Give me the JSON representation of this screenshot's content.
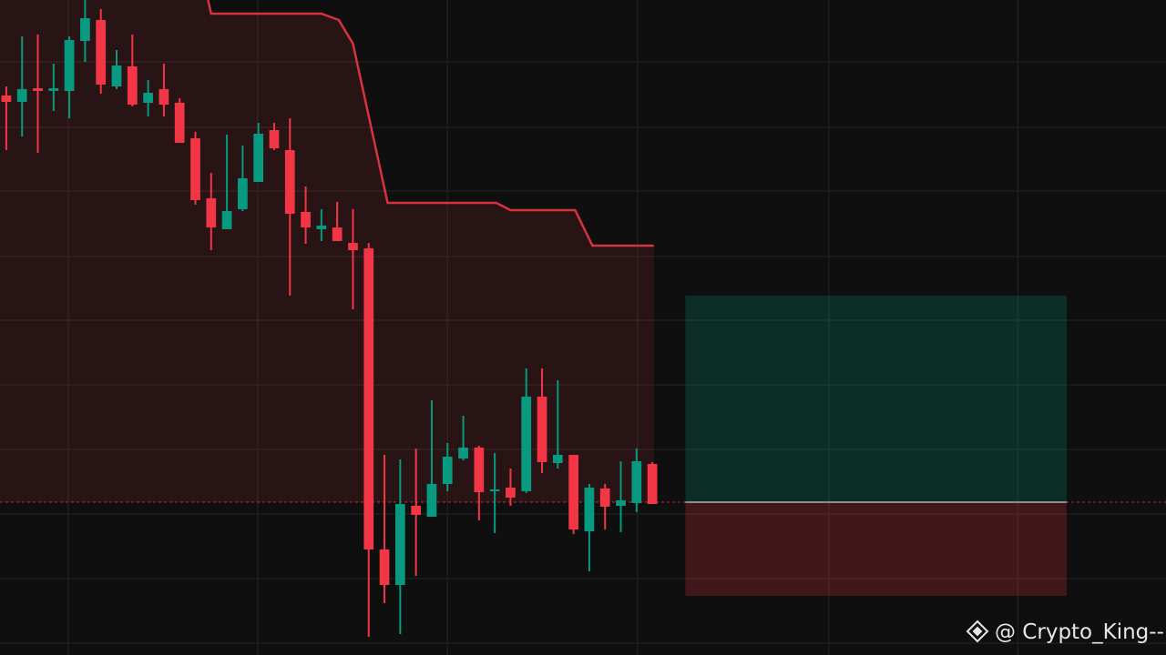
{
  "chart_data": {
    "type": "candlestick",
    "open": [
      615,
      608,
      623,
      620,
      620,
      675,
      698,
      625,
      647,
      607,
      622,
      607,
      568,
      502,
      468,
      490,
      520,
      577,
      555,
      487,
      468,
      470,
      453,
      447,
      116,
      77,
      164,
      152,
      188,
      216,
      228,
      180,
      184,
      180,
      284,
      211,
      220,
      136,
      183,
      164,
      167,
      210
    ],
    "high": [
      625,
      680,
      682,
      650,
      680,
      720,
      710,
      665,
      682,
      632,
      650,
      612,
      575,
      530,
      572,
      560,
      585,
      585,
      590,
      515,
      490,
      498,
      490,
      453,
      220,
      215,
      227,
      280,
      233,
      263,
      230,
      222,
      205,
      315,
      315,
      302,
      220,
      188,
      188,
      213,
      227,
      212
    ],
    "low": [
      555,
      570,
      552,
      598,
      590,
      652,
      617,
      622,
      603,
      592,
      592,
      563,
      495,
      445,
      468,
      488,
      520,
      555,
      395,
      452,
      455,
      455,
      380,
      20,
      57,
      23,
      87,
      152,
      180,
      214,
      148,
      134,
      164,
      178,
      200,
      205,
      133,
      92,
      138,
      135,
      157,
      166
    ],
    "close": [
      608,
      622,
      620,
      623,
      676,
      700,
      627,
      648,
      605,
      618,
      605,
      563,
      500,
      470,
      488,
      524,
      573,
      557,
      485,
      470,
      472,
      455,
      445,
      116,
      77,
      166,
      154,
      188,
      218,
      228,
      179,
      182,
      173,
      284,
      212,
      220,
      138,
      184,
      163,
      170,
      213,
      166
    ],
    "up_color": "#089981",
    "down_color": "#f23645",
    "trail": {
      "x": [
        12.8,
        13,
        20,
        21.1,
        22,
        24.2,
        31.1,
        32,
        36.1,
        37.2,
        41.1
      ],
      "values": [
        720,
        705,
        705,
        698,
        672,
        497,
        497,
        489,
        489,
        450,
        450
      ],
      "color": "#d7333f"
    },
    "position": {
      "start": 43.1,
      "end": 67.3,
      "entry": 168,
      "target": 395,
      "stop": 65
    },
    "xlim": [
      -0.4,
      73.6
    ],
    "ylim": [
      0,
      720
    ],
    "xticks": [
      3.93,
      15.95,
      28.0,
      40.05,
      52.2,
      64.2
    ],
    "yticks": [
      652,
      580,
      510,
      438,
      368,
      297,
      226,
      155,
      84,
      13
    ],
    "grid": true,
    "watermark": "@ Crypto_King--"
  }
}
